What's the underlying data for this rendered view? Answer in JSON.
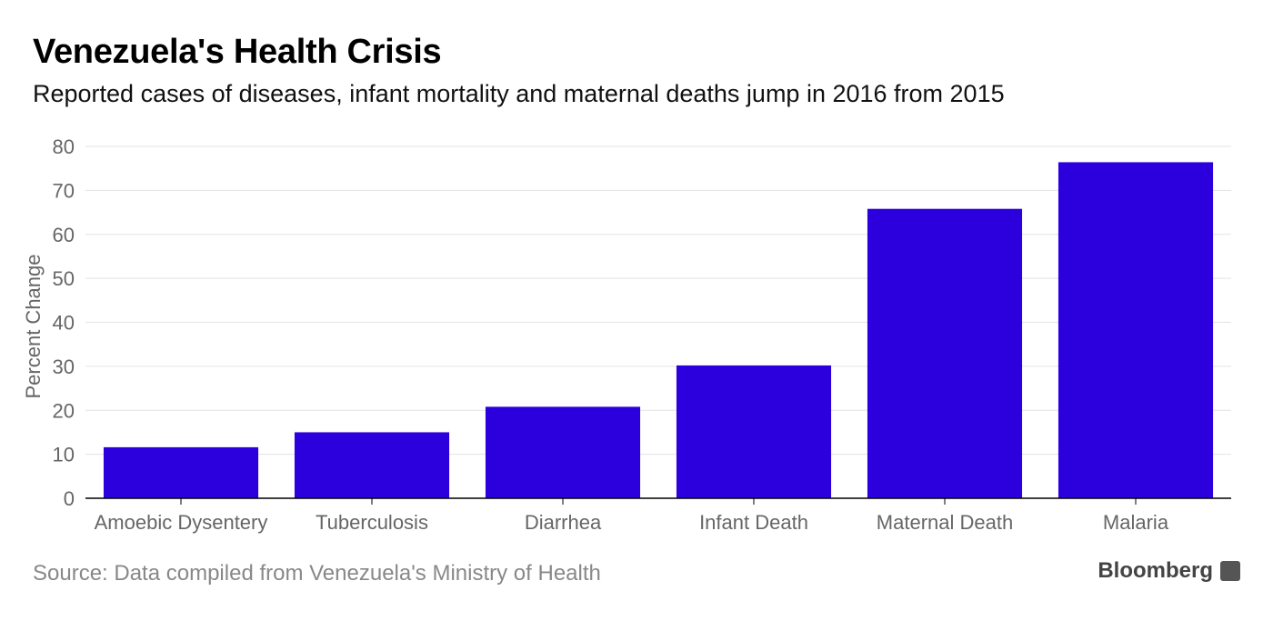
{
  "header": {
    "title": "Venezuela's Health Crisis",
    "subtitle": "Reported cases of diseases, infant mortality and maternal deaths jump in 2016 from 2015"
  },
  "footer": {
    "source": "Source: Data compiled from Venezuela's Ministry of Health",
    "brand": "Bloomberg",
    "brand_icon": "bloomberg-logo-icon"
  },
  "colors": {
    "bar": "#2C00DC",
    "grid": "#E3E3E3",
    "axis": "#000000",
    "tick_text": "#666666"
  },
  "chart_data": {
    "type": "bar",
    "title": "Venezuela's Health Crisis",
    "subtitle": "Reported cases of diseases, infant mortality and maternal deaths jump in 2016 from 2015",
    "xlabel": "",
    "ylabel": "Percent Change",
    "categories": [
      "Amoebic Dysentery",
      "Tuberculosis",
      "Diarrhea",
      "Infant Death",
      "Maternal Death",
      "Malaria"
    ],
    "values": [
      11.6,
      15.0,
      20.8,
      30.2,
      65.8,
      76.4
    ],
    "ylim": [
      0,
      80
    ],
    "yticks": [
      0,
      10,
      20,
      30,
      40,
      50,
      60,
      70,
      80
    ],
    "grid": true,
    "legend": "none"
  }
}
